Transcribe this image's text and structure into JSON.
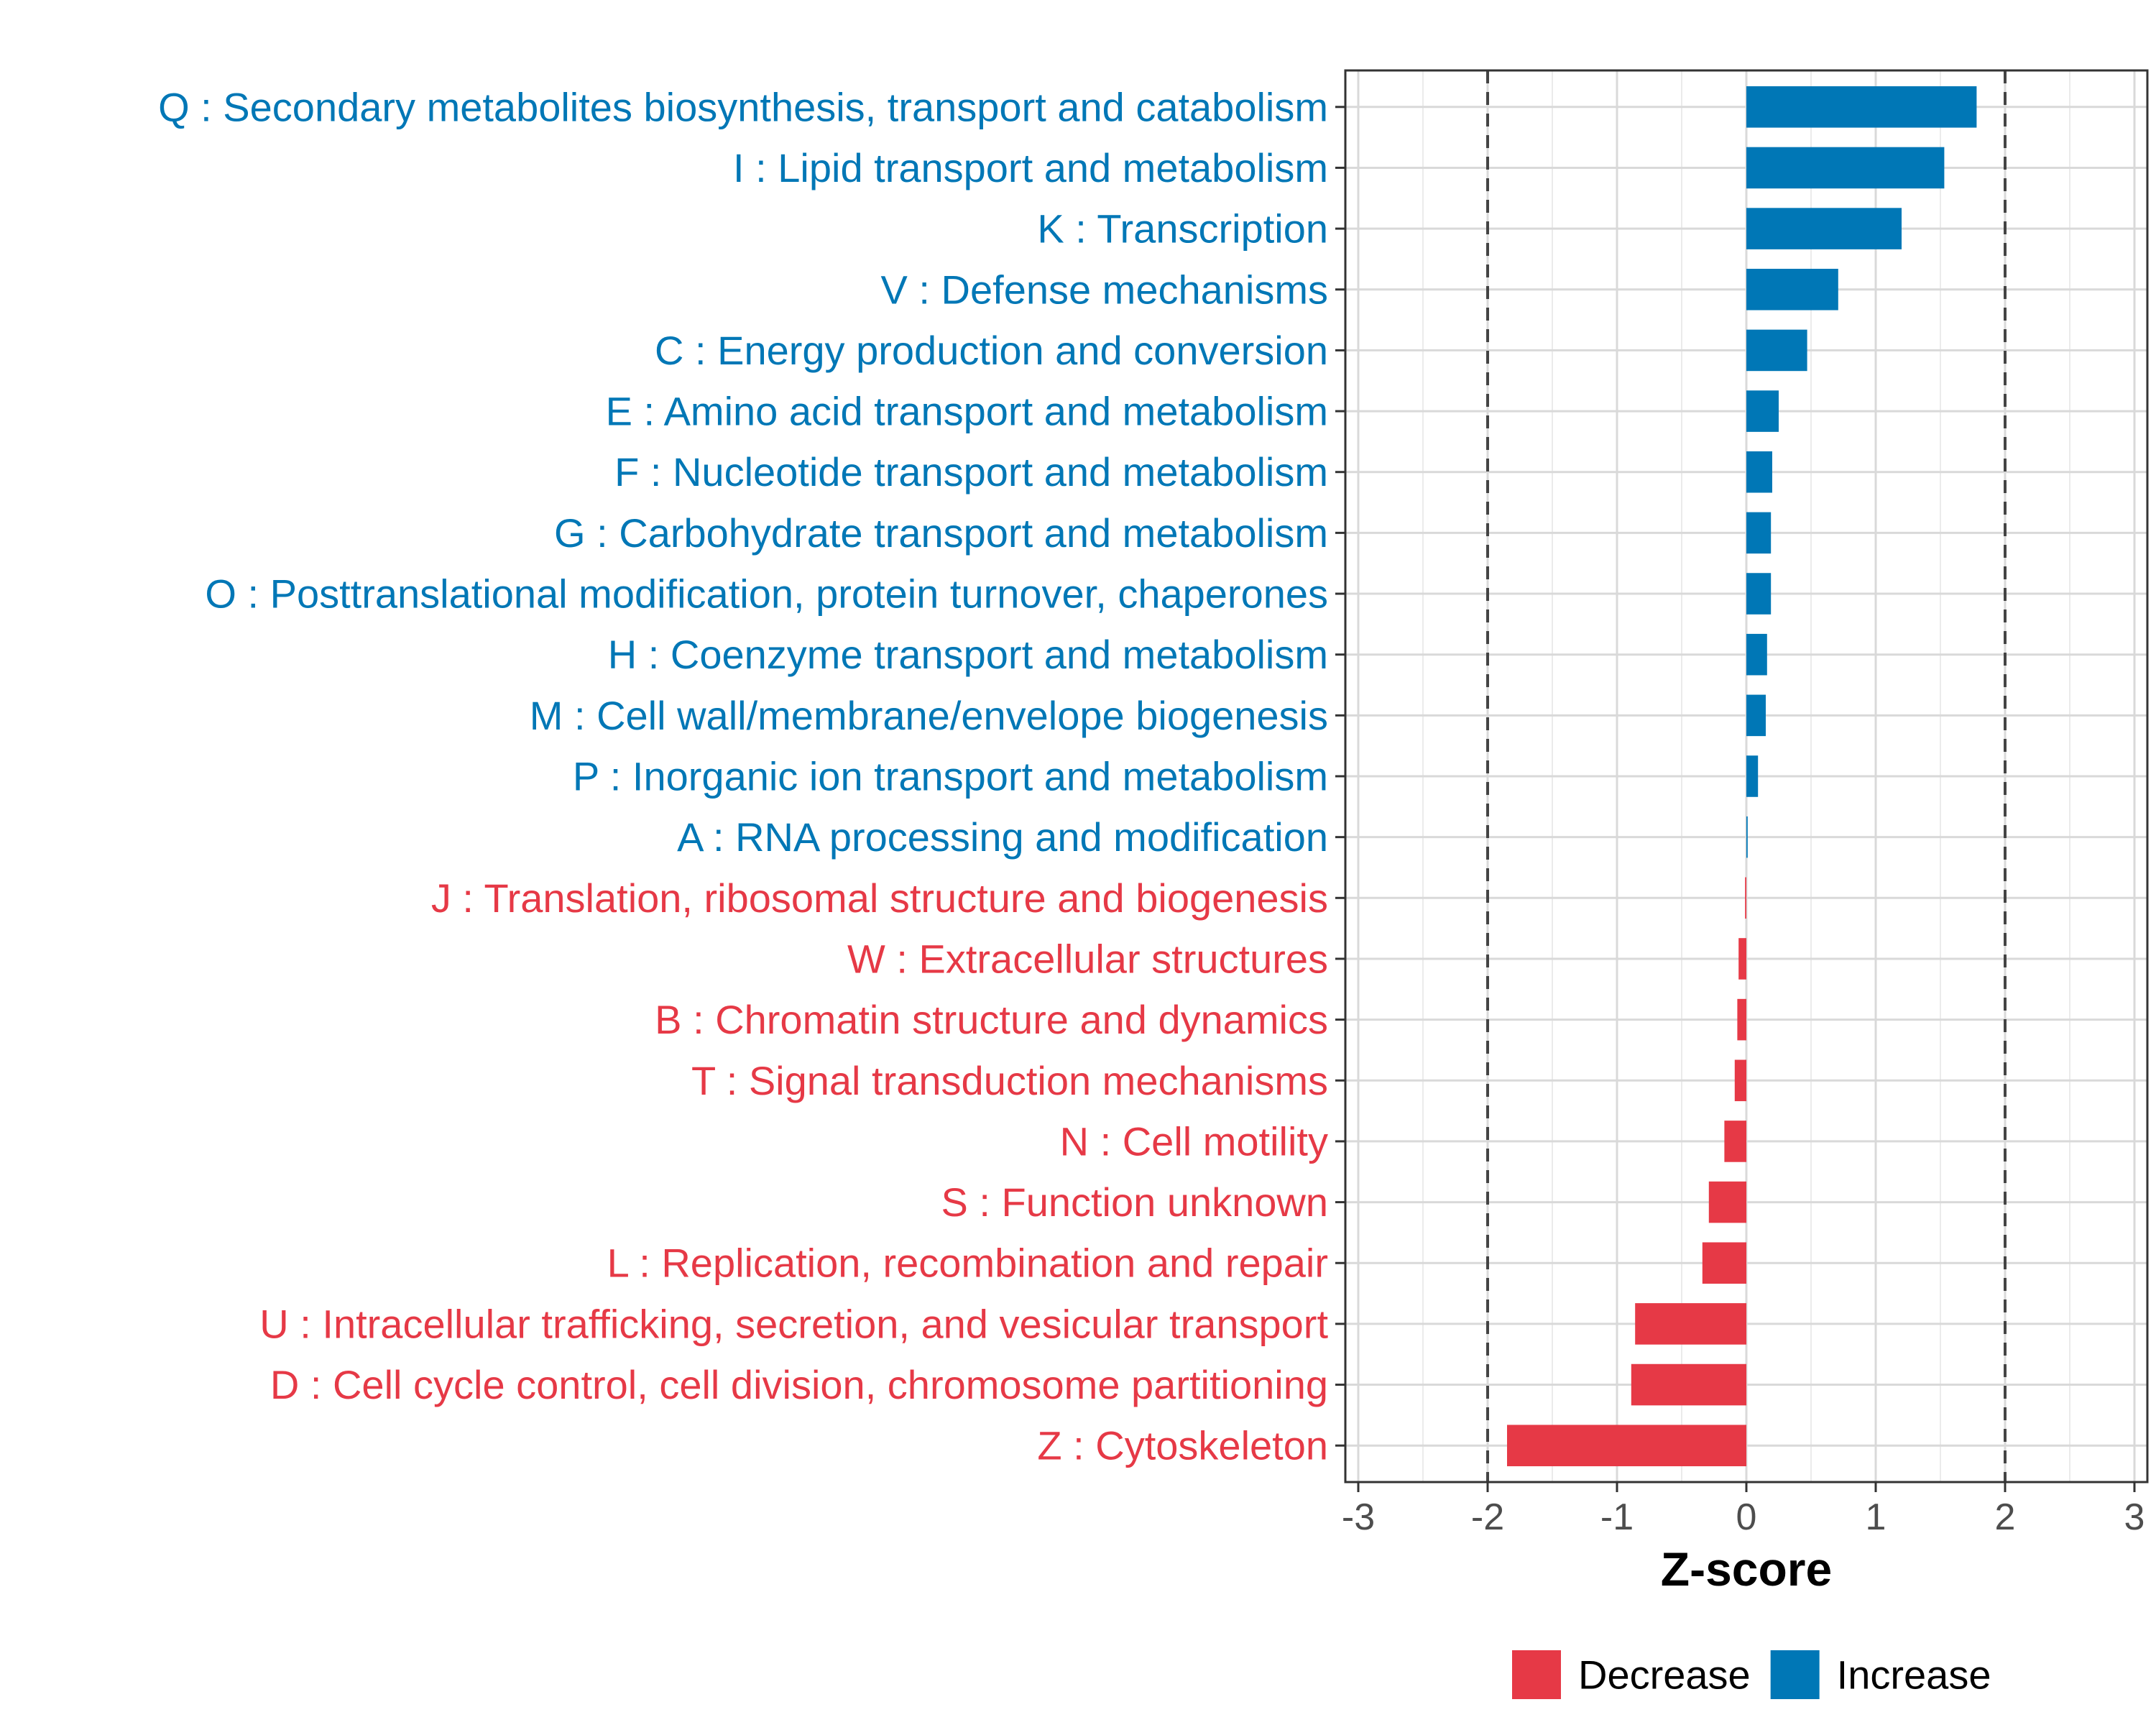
{
  "chart_data": {
    "type": "bar",
    "orientation": "horizontal",
    "xlabel": "Z-score",
    "ylabel": "",
    "xlim": [
      -3.1,
      3.1
    ],
    "x_ticks": [
      -3,
      -2,
      -1,
      0,
      1,
      2,
      3
    ],
    "x_tick_labels": [
      "-3",
      "-2",
      "-1",
      "0",
      "1",
      "2",
      "3"
    ],
    "reference_lines": [
      -2,
      2
    ],
    "grid": true,
    "legend_position": "bottom",
    "colors": {
      "Decrease": "#e63946",
      "Increase": "#0077b6"
    },
    "legend": [
      {
        "name": "Decrease",
        "color": "#e63946"
      },
      {
        "name": "Increase",
        "color": "#0077b6"
      }
    ],
    "categories": [
      "Q : Secondary metabolites biosynthesis, transport and catabolism",
      "I : Lipid transport and metabolism",
      "K : Transcription",
      "V : Defense mechanisms",
      "C : Energy production and conversion",
      "E : Amino acid transport and metabolism",
      "F : Nucleotide transport and metabolism",
      "G : Carbohydrate transport and metabolism",
      "O : Posttranslational modification, protein turnover, chaperones",
      "H : Coenzyme transport and metabolism",
      "M : Cell wall/membrane/envelope biogenesis",
      "P : Inorganic ion transport and metabolism",
      "A : RNA processing and modification",
      "J : Translation, ribosomal structure and biogenesis",
      "W : Extracellular structures",
      "B : Chromatin structure and dynamics",
      "T : Signal transduction mechanisms",
      "N : Cell motility",
      "S : Function unknown",
      "L : Replication, recombination and repair",
      "U : Intracellular trafficking, secretion, and vesicular transport",
      "D : Cell cycle control, cell division, chromosome partitioning",
      "Z : Cytoskeleton"
    ],
    "values": [
      1.78,
      1.53,
      1.2,
      0.71,
      0.47,
      0.25,
      0.2,
      0.19,
      0.19,
      0.16,
      0.15,
      0.09,
      0.01,
      -0.01,
      -0.06,
      -0.07,
      -0.09,
      -0.17,
      -0.29,
      -0.34,
      -0.86,
      -0.89,
      -1.85
    ],
    "groups": [
      "Increase",
      "Increase",
      "Increase",
      "Increase",
      "Increase",
      "Increase",
      "Increase",
      "Increase",
      "Increase",
      "Increase",
      "Increase",
      "Increase",
      "Increase",
      "Decrease",
      "Decrease",
      "Decrease",
      "Decrease",
      "Decrease",
      "Decrease",
      "Decrease",
      "Decrease",
      "Decrease",
      "Decrease"
    ]
  }
}
